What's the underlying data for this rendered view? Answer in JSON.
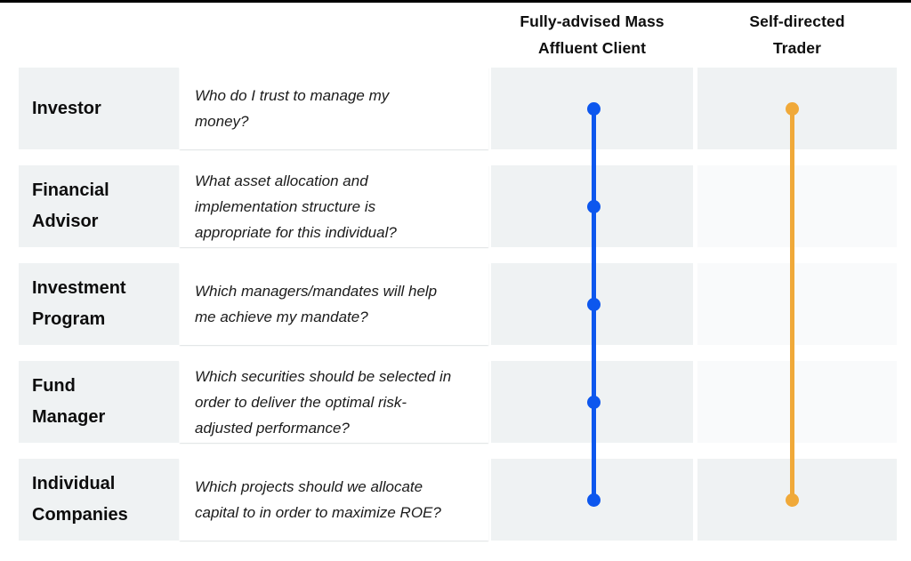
{
  "page": {
    "top_border_color": "#000000",
    "background": "#ffffff"
  },
  "colors": {
    "cell_gray": "#eff2f3",
    "cell_light": "#f9fafb",
    "advised_blue": "#0d57ee",
    "self_directed_orange": "#f0a939",
    "header_text": "#0e0e0e"
  },
  "columns": {
    "advised": {
      "title_line1": "Fully-advised Mass",
      "title_line2": "Affluent Client",
      "color": "#0d57ee"
    },
    "self_directed": {
      "title_line1": "Self-directed",
      "title_line2": "Trader",
      "color": "#f0a939"
    }
  },
  "rows": [
    {
      "label": "Investor",
      "question": "Who do I trust to manage my\nmoney?",
      "advised_dot": true,
      "self_directed_dot": true,
      "self_directed_shade": "dark"
    },
    {
      "label": "Financial\nAdvisor",
      "question": "What asset allocation and\nimplementation structure is\nappropriate for this individual?",
      "advised_dot": true,
      "self_directed_dot": false,
      "self_directed_shade": "light"
    },
    {
      "label": "Investment\nProgram",
      "question": "Which managers/mandates will help\nme achieve my mandate?",
      "advised_dot": true,
      "self_directed_dot": false,
      "self_directed_shade": "light"
    },
    {
      "label": "Fund\nManager",
      "question": "Which securities should be selected in\norder to deliver the optimal risk-\nadjusted performance?",
      "advised_dot": true,
      "self_directed_dot": false,
      "self_directed_shade": "light"
    },
    {
      "label": "Individual\nCompanies",
      "question": "Which projects should we allocate\ncapital to in order to maximize ROE?",
      "advised_dot": true,
      "self_directed_dot": true,
      "self_directed_shade": "dark"
    }
  ]
}
